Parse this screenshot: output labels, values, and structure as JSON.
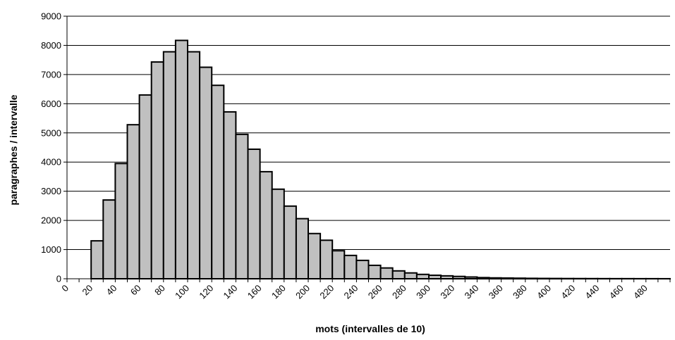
{
  "chart_data": {
    "type": "bar",
    "title": "",
    "xlabel": "mots (intervalles de 10)",
    "ylabel": "paragraphes / intervalle",
    "ylim": [
      0,
      9000
    ],
    "yticks": [
      0,
      1000,
      2000,
      3000,
      4000,
      5000,
      6000,
      7000,
      8000,
      9000
    ],
    "xlim": [
      0,
      500
    ],
    "bin_width": 10,
    "xticks": [
      0,
      20,
      40,
      60,
      80,
      100,
      120,
      140,
      160,
      180,
      200,
      220,
      240,
      260,
      280,
      300,
      320,
      340,
      360,
      380,
      400,
      420,
      440,
      460,
      480
    ],
    "bin_starts": [
      0,
      10,
      20,
      30,
      40,
      50,
      60,
      70,
      80,
      90,
      100,
      110,
      120,
      130,
      140,
      150,
      160,
      170,
      180,
      190,
      200,
      210,
      220,
      230,
      240,
      250,
      260,
      270,
      280,
      290,
      300,
      310,
      320,
      330,
      340,
      350,
      360,
      370,
      380,
      390,
      400,
      410,
      420,
      430,
      440,
      450,
      460,
      470,
      480,
      490
    ],
    "values": [
      0,
      0,
      1300,
      2700,
      3950,
      5280,
      6300,
      7430,
      7780,
      8170,
      7780,
      7250,
      6630,
      5720,
      4950,
      4440,
      3670,
      3070,
      2490,
      2060,
      1550,
      1320,
      960,
      800,
      630,
      460,
      370,
      270,
      200,
      150,
      120,
      100,
      80,
      60,
      40,
      30,
      25,
      20,
      15,
      12,
      10,
      8,
      7,
      6,
      5,
      4,
      4,
      3,
      3,
      2
    ],
    "grid": true,
    "legend": "none",
    "colors": {
      "bar_fill": "#c0c0c0",
      "bar_stroke": "#000000",
      "grid": "#000000",
      "background": "#ffffff"
    }
  }
}
